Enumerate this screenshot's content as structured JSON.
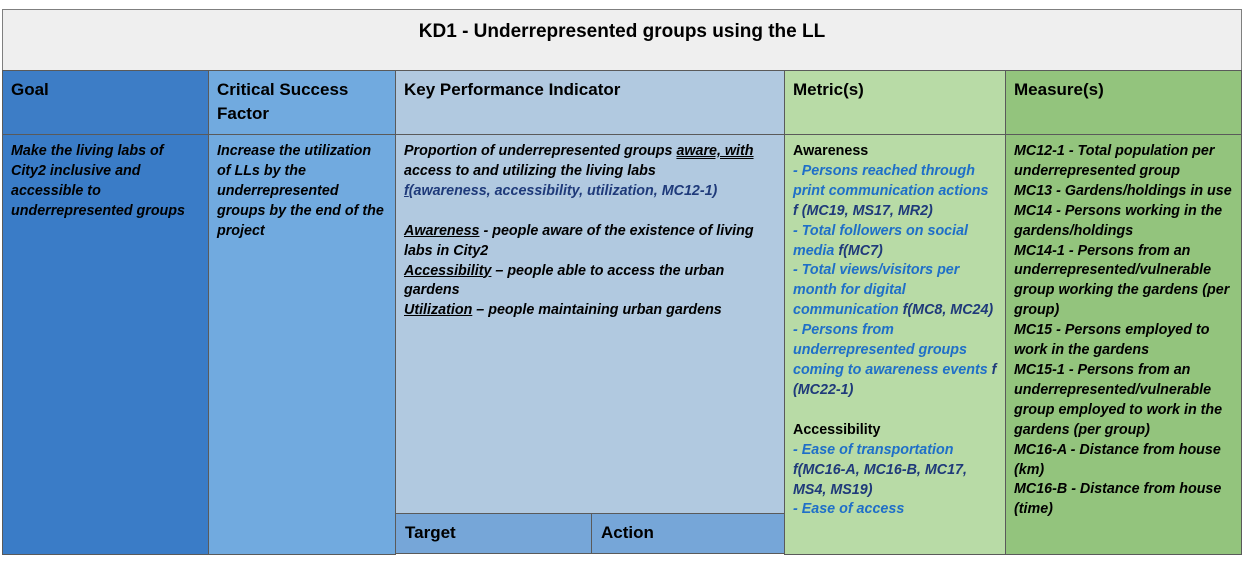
{
  "title": "KD1 - Underrepresented groups using the LL",
  "headers": {
    "goal": "Goal",
    "csf": "Critical Success Factor",
    "kpi": "Key Performance Indicator",
    "metric": "Metric(s)",
    "measure": "Measure(s)"
  },
  "goal_text": "Make the living labs of City2 inclusive and accessible to underrepresented groups",
  "csf_text": "Increase the utilization of LLs by the underrepresented groups by the end of the project",
  "kpi": {
    "line1_a": "Proportion of underrepresented groups ",
    "line1_b": "aware,  with",
    "line1_c": " access to and utilizing the living labs",
    "formula_f": "f",
    "formula": "(awareness, accessibility, utilization, MC12-1)",
    "awareness_term": "Awareness",
    "awareness_desc": " - people aware of the existence of living labs in City2",
    "accessibility_term": "Accessibility",
    "accessibility_desc": " – people able to access the urban gardens",
    "utilization_term": "Utilization",
    "utilization_desc": " – people maintaining urban gardens"
  },
  "footer": {
    "target": "Target",
    "action": "Action"
  },
  "metrics": {
    "awareness_heading": "Awareness",
    "items1": [
      {
        "text": "- Persons reached through print communication actions",
        "formula": "f (MC19, MS17, MR2)"
      },
      {
        "text": "- Total followers on social media",
        "formula": "f(MC7)"
      },
      {
        "text": "- Total views/visitors per month for digital communication",
        "formula": "f(MC8, MC24)"
      },
      {
        "text": "- Persons from underrepresented groups coming to awareness events",
        "formula": "f (MC22-1)"
      }
    ],
    "accessibility_heading": "Accessibility",
    "transport": "- Ease of transportation",
    "transport_formula": "f(MC16-A, MC16-B, MC17, MS4, MS19)",
    "access": "- Ease of access"
  },
  "measures": [
    "MC12-1 - Total population per underrepresented group",
    "MC13 - Gardens/holdings in use",
    "MC14 - Persons working in the gardens/holdings",
    "MC14-1 - Persons from an underrepresented/vulnerable group working the gardens (per group)",
    "MC15 - Persons employed to work in the gardens",
    "MC15-1 - Persons from an underrepresented/vulnerable group employed to work in the gardens (per group)",
    "MC16-A - Distance from house (km)",
    "MC16-B - Distance from house (time)"
  ]
}
